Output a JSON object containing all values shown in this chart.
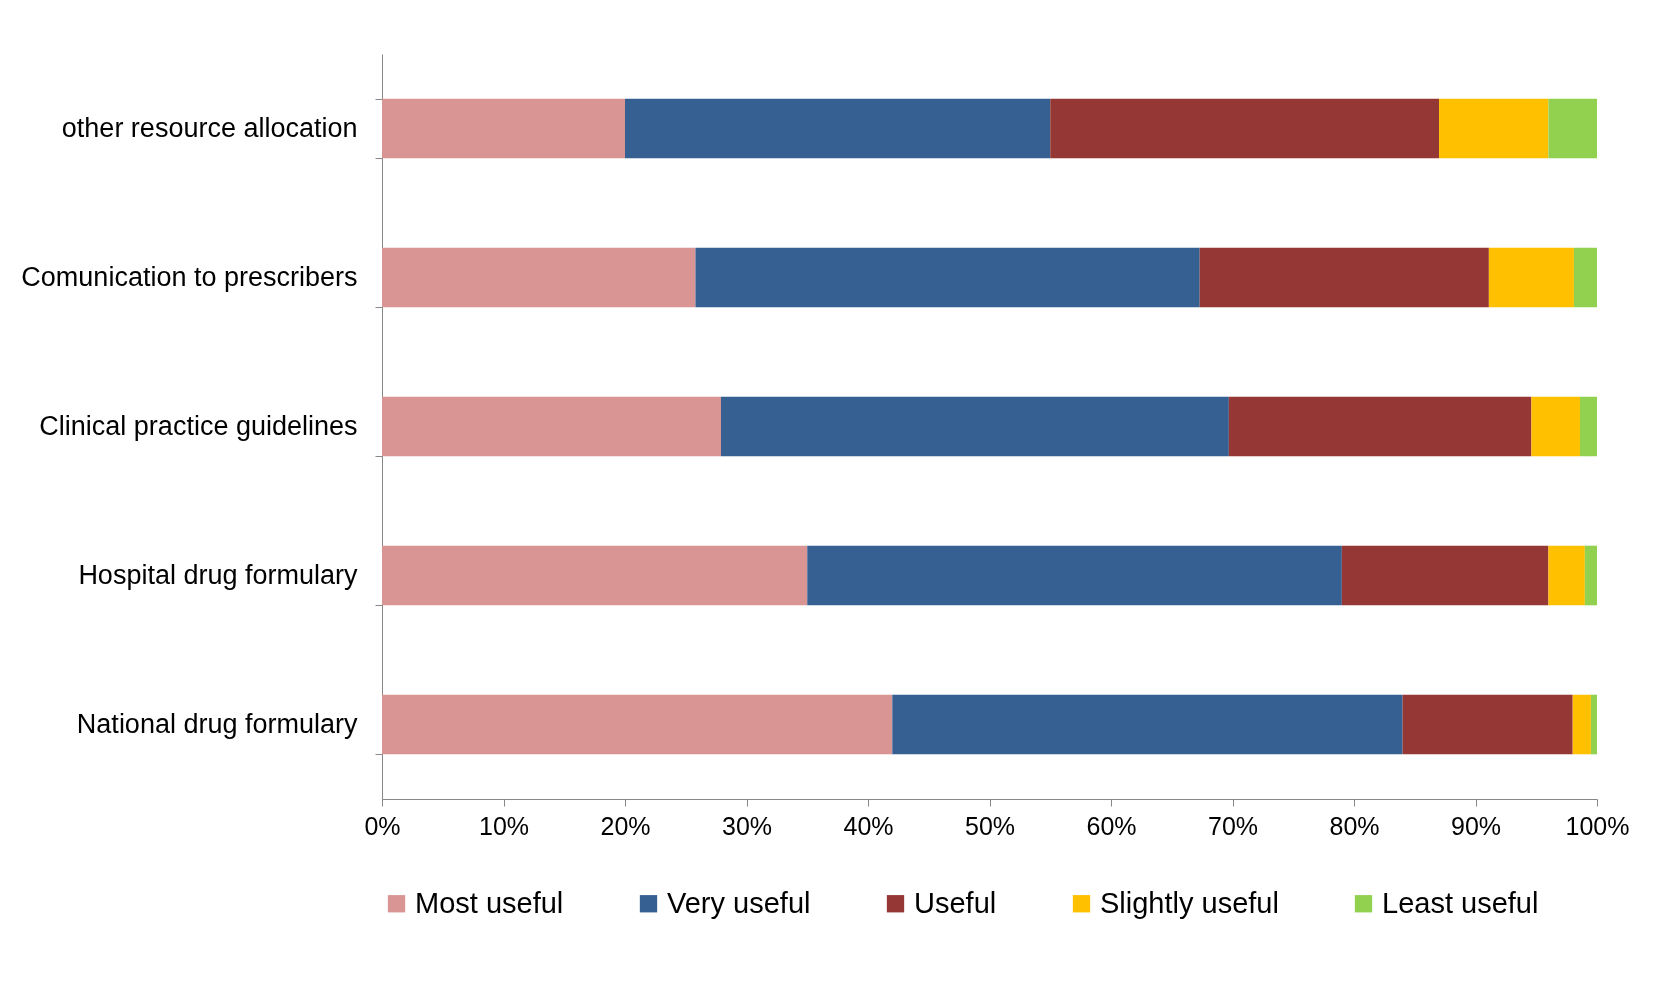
{
  "chart_data": {
    "type": "bar",
    "orientation": "horizontal",
    "stacked": true,
    "categories": [
      "other resource allocation",
      "Comunication to prescribers",
      "Clinical practice guidelines",
      "Hospital drug formulary",
      "National drug formulary"
    ],
    "series": [
      {
        "name": "Most useful",
        "color": "#d99594",
        "values": [
          20,
          25.8,
          27.9,
          35,
          42
        ]
      },
      {
        "name": "Very useful",
        "color": "#366092",
        "values": [
          35,
          41.5,
          41.8,
          44,
          42
        ]
      },
      {
        "name": "Useful",
        "color": "#953735",
        "values": [
          32,
          23.8,
          24.9,
          17,
          14
        ]
      },
      {
        "name": "Slightly useful",
        "color": "#ffc000",
        "values": [
          9,
          7,
          4,
          3,
          1.5
        ]
      },
      {
        "name": "Least useful",
        "color": "#92d050",
        "values": [
          4,
          1.9,
          1.4,
          1,
          0.5
        ]
      }
    ],
    "xlim": [
      0,
      100
    ],
    "xticks": [
      {
        "value": 0,
        "label": "0%"
      },
      {
        "value": 10,
        "label": "10%"
      },
      {
        "value": 20,
        "label": "20%"
      },
      {
        "value": 30,
        "label": "30%"
      },
      {
        "value": 40,
        "label": "40%"
      },
      {
        "value": 50,
        "label": "50%"
      },
      {
        "value": 60,
        "label": "60%"
      },
      {
        "value": 70,
        "label": "70%"
      },
      {
        "value": 80,
        "label": "80%"
      },
      {
        "value": 90,
        "label": "90%"
      },
      {
        "value": 100,
        "label": "100%"
      }
    ],
    "grid": false,
    "legend": "bottom"
  }
}
